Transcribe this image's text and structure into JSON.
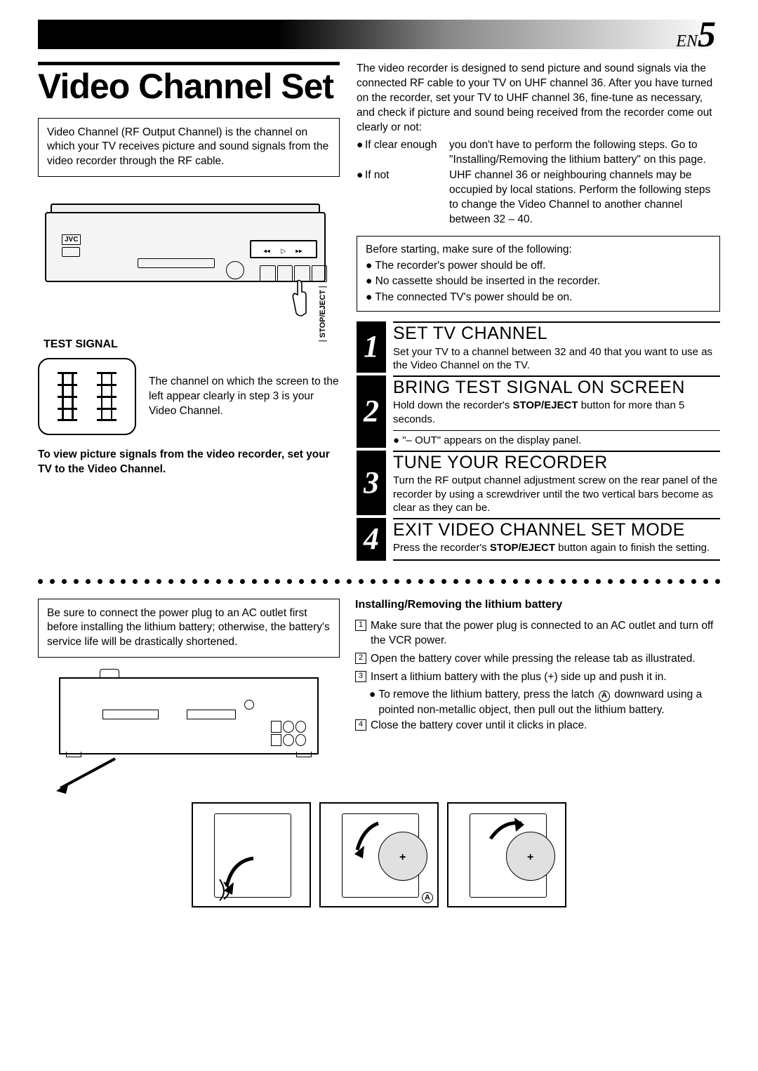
{
  "page": {
    "prefix": "EN",
    "number": "5"
  },
  "title": "Video Channel Set",
  "intro_box": "Video Channel (RF Output Channel) is the channel on which your TV receives picture and sound signals from the video recorder through the RF cable.",
  "vcr": {
    "brand": "JVC",
    "button_label": "STOP/EJECT"
  },
  "test_signal": {
    "heading": "TEST SIGNAL",
    "text": "The channel on which the screen to the left appear clearly in step 3 is your Video Channel."
  },
  "bold_note": "To view picture signals from the video recorder, set your TV to the Video Channel.",
  "right_intro": "The video recorder is designed to send picture and sound signals via the connected RF cable to your TV on UHF channel 36. After you have turned on the recorder, set your TV to UHF channel 36, fine-tune as necessary, and check if picture and sound being received from the recorder come out clearly or not:",
  "conditions": [
    {
      "label": "If clear enough",
      "text": "you don't have to perform the following steps. Go to \"Installing/Removing the lithium battery\" on this page."
    },
    {
      "label": "If not",
      "text": "UHF channel 36 or neighbouring channels may be occupied by local stations. Perform the following steps to change the Video Channel to another channel between 32 – 40."
    }
  ],
  "pre_box": {
    "lead": "Before starting, make sure of the following:",
    "items": [
      "The recorder's power should be off.",
      "No cassette should be inserted in the recorder.",
      "The connected TV's power should be on."
    ]
  },
  "steps": [
    {
      "n": "1",
      "title": "SET TV CHANNEL",
      "text": "Set your TV to a channel between 32 and 40 that you want to use as the Video Channel on the TV."
    },
    {
      "n": "2",
      "title": "BRING TEST SIGNAL ON SCREEN",
      "text_html": "Hold down the recorder's <b>STOP/EJECT</b> button for more than 5 seconds.",
      "sub": "\"– OUT\" appears on the display panel."
    },
    {
      "n": "3",
      "title": "TUNE YOUR RECORDER",
      "text": "Turn the RF output channel adjustment screw on the rear panel of the recorder by using a screwdriver until the two vertical bars become as clear as they can be."
    },
    {
      "n": "4",
      "title": "EXIT VIDEO CHANNEL SET MODE",
      "text_html": "Press the recorder's <b>STOP/EJECT</b> button again to finish the setting."
    }
  ],
  "warn_box": "Be sure to connect the power plug to an AC outlet first before installing the lithium battery; otherwise, the battery's service life will be drastically shortened.",
  "battery": {
    "heading": "Installing/Removing the lithium battery",
    "items": [
      "Make sure that the power plug is connected to an AC outlet and turn off the VCR power.",
      "Open the battery cover while pressing the release tab as illustrated.",
      "Insert a lithium battery with the plus (+) side up and push it in.",
      "Close the battery cover until it clicks in place."
    ],
    "sub": "To remove the lithium battery, press the latch Ⓐ downward using a pointed non-metallic object, then pull out the lithium battery.",
    "circle_label": "A"
  },
  "colors": {
    "black": "#000000",
    "white": "#ffffff",
    "grey_fill": "#f4f4f4"
  }
}
